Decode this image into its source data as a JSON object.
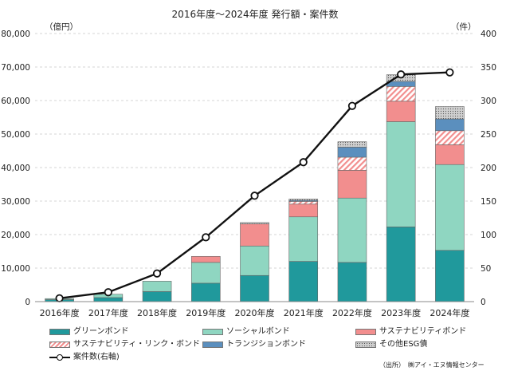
{
  "chart_data": {
    "type": "bar",
    "title": "2016年度～2024年度 発行額・案件数",
    "left_unit": "（億円）",
    "right_unit": "（件）",
    "categories": [
      "2016年度",
      "2017年度",
      "2018年度",
      "2019年度",
      "2020年度",
      "2021年度",
      "2022年度",
      "2023年度",
      "2024年度"
    ],
    "ylim": [
      0,
      80000
    ],
    "y_ticks": [
      "0",
      "10,000",
      "20,000",
      "30,000",
      "40,000",
      "50,000",
      "60,000",
      "70,000",
      "80,000"
    ],
    "y2lim": [
      0,
      400
    ],
    "y2_ticks": [
      "0",
      "50",
      "100",
      "150",
      "200",
      "250",
      "300",
      "350",
      "400"
    ],
    "grid": true,
    "stacked": true,
    "series": [
      {
        "name": "グリーンボンド",
        "kind": "bar",
        "color": "#20999c",
        "pattern": "solid",
        "values": [
          600,
          1200,
          3000,
          5500,
          7800,
          12000,
          11700,
          22300,
          15300
        ]
      },
      {
        "name": "ソーシャルボンド",
        "kind": "bar",
        "color": "#8fd6c1",
        "pattern": "solid",
        "values": [
          300,
          1000,
          3100,
          6200,
          8800,
          13300,
          19200,
          31400,
          25600
        ]
      },
      {
        "name": "サステナビリティボンド",
        "kind": "bar",
        "color": "#f28e8e",
        "pattern": "solid",
        "values": [
          0,
          0,
          0,
          1800,
          6600,
          3800,
          8300,
          6100,
          5900
        ]
      },
      {
        "name": "サステナビリティ・リンク・ボンド",
        "kind": "bar",
        "color": "#f28e8e",
        "pattern": "hatch",
        "values": [
          0,
          0,
          0,
          0,
          0,
          800,
          3900,
          4400,
          4200
        ]
      },
      {
        "name": "トランジションボンド",
        "kind": "bar",
        "color": "#5b8fbe",
        "pattern": "solid",
        "values": [
          0,
          0,
          0,
          0,
          0,
          300,
          3000,
          1500,
          3500
        ]
      },
      {
        "name": "その他ESG債",
        "kind": "bar",
        "color": "#c8c8c8",
        "pattern": "dots",
        "values": [
          0,
          0,
          0,
          0,
          400,
          400,
          1600,
          2000,
          3700
        ]
      },
      {
        "name": "案件数(右軸)",
        "kind": "line",
        "axis": "right",
        "color": "#111111",
        "values": [
          5,
          14,
          42,
          96,
          158,
          208,
          292,
          339,
          342
        ]
      }
    ],
    "legend_position": "bottom"
  },
  "source_note": "（出所）　㈱アイ・エヌ情報センター"
}
